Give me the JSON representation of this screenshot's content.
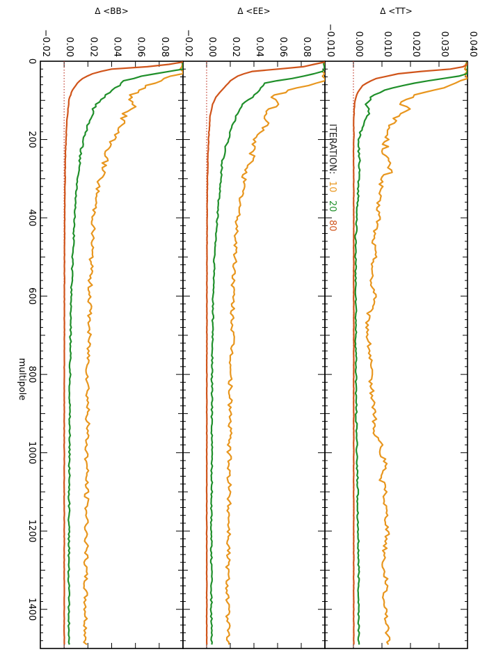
{
  "chart_data": {
    "type": "line",
    "orientation": "rotated 90 degrees clockwise",
    "xlabel": "multipole",
    "x_range": [
      0,
      1500
    ],
    "x_ticks": [
      0,
      200,
      400,
      600,
      800,
      1000,
      1200,
      1400
    ],
    "legend": {
      "prefix": "ITERATION:",
      "entries": [
        {
          "label": "10",
          "color": "#e8961e"
        },
        {
          "label": "20",
          "color": "#1f8f2a"
        },
        {
          "label": "80",
          "color": "#d0541a"
        }
      ]
    },
    "colors": {
      "iter10": "#e8961e",
      "iter20": "#1f8f2a",
      "iter80": "#d0541a",
      "zero_line": "#c0392b"
    },
    "panels": [
      {
        "id": "tt",
        "ylabel": "Δ <TT>",
        "y_range": [
          -0.01,
          0.04
        ],
        "y_ticks": [
          -0.01,
          0.0,
          0.01,
          0.02,
          0.03,
          0.04
        ],
        "y_tick_labels": [
          "−0.010",
          "0.000",
          "0.010",
          "0.020",
          "0.030",
          "0.040"
        ],
        "series": [
          {
            "iteration": "10",
            "x": [
              2,
              25,
              45,
              65,
              80,
              95,
              110,
              125,
              140,
              160,
              180,
              200,
              230,
              260,
              280,
              300,
              330,
              360,
              400,
              450,
              500,
              560,
              600,
              650,
              700,
              750,
              800,
              850,
              900,
              950,
              980,
              1000,
              1030,
              1060,
              1090,
              1120,
              1150,
              1200,
              1250,
              1300,
              1330,
              1350,
              1380,
              1400,
              1420,
              1440,
              1460,
              1490
            ],
            "y": [
              0.04,
              0.04,
              0.04,
              0.033,
              0.024,
              0.019,
              0.017,
              0.02,
              0.016,
              0.013,
              0.012,
              0.0115,
              0.011,
              0.012,
              0.013,
              0.01,
              0.0095,
              0.0085,
              0.009,
              0.007,
              0.0075,
              0.006,
              0.008,
              0.005,
              0.005,
              0.0058,
              0.006,
              0.0065,
              0.0075,
              0.007,
              0.01,
              0.009,
              0.012,
              0.009,
              0.0115,
              0.011,
              0.0115,
              0.012,
              0.011,
              0.0105,
              0.012,
              0.011,
              0.0105,
              0.012,
              0.0115,
              0.0115,
              0.012,
              0.012
            ]
          },
          {
            "iteration": "20",
            "x": [
              2,
              20,
              35,
              50,
              70,
              90,
              110,
              130,
              150,
              180,
              200,
              250,
              300,
              350,
              400,
              450,
              500,
              550,
              600,
              700,
              800,
              900,
              1000,
              1100,
              1200,
              1300,
              1400,
              1490
            ],
            "y": [
              0.04,
              0.04,
              0.04,
              0.026,
              0.012,
              0.0065,
              0.0045,
              0.0055,
              0.004,
              0.0025,
              0.002,
              0.002,
              0.0018,
              0.0016,
              0.0012,
              0.0008,
              0.0008,
              0.0007,
              0.0009,
              0.0008,
              0.0009,
              0.001,
              0.0012,
              0.0015,
              0.0016,
              0.0018,
              0.0018,
              0.0019
            ]
          },
          {
            "iteration": "80",
            "x": [
              2,
              12,
              20,
              30,
              45,
              60,
              80,
              100,
              130,
              160,
              200,
              300,
              400,
              500,
              600,
              700,
              800,
              900,
              1000,
              1200,
              1400,
              1490
            ],
            "y": [
              0.04,
              0.04,
              0.034,
              0.017,
              0.0075,
              0.0035,
              0.0015,
              0.0006,
              0.0002,
              0.0001,
              0.0001,
              0.0001,
              0.0001,
              0.0001,
              0.0001,
              0.0001,
              0.0001,
              0.0001,
              0.0001,
              0.0001,
              0.0001,
              0.0001
            ]
          }
        ]
      },
      {
        "id": "ee",
        "ylabel": "Δ <EE>",
        "y_range": [
          -0.02,
          0.1
        ],
        "y_ticks": [
          -0.02,
          0.0,
          0.02,
          0.04,
          0.06,
          0.08
        ],
        "y_tick_labels": [
          "−0.02",
          "0.00",
          "0.02",
          "0.04",
          "0.06",
          "0.08"
        ],
        "series": [
          {
            "iteration": "10",
            "x": [
              2,
              30,
              50,
              70,
              90,
              110,
              130,
              150,
              180,
              200,
              250,
              300,
              350,
              400,
              450,
              500,
              550,
              600,
              700,
              800,
              900,
              1000,
              1100,
              1200,
              1300,
              1400,
              1490
            ],
            "y": [
              0.1,
              0.1,
              0.1,
              0.075,
              0.055,
              0.06,
              0.05,
              0.052,
              0.045,
              0.04,
              0.038,
              0.032,
              0.029,
              0.026,
              0.025,
              0.024,
              0.023,
              0.022,
              0.022,
              0.02,
              0.02,
              0.019,
              0.019,
              0.019,
              0.018,
              0.018,
              0.018
            ]
          },
          {
            "iteration": "20",
            "x": [
              2,
              25,
              40,
              55,
              70,
              90,
              110,
              130,
              160,
              200,
              250,
              300,
              400,
              500,
              600,
              700,
              800,
              1000,
              1200,
              1400,
              1490
            ],
            "y": [
              0.1,
              0.1,
              0.08,
              0.05,
              0.045,
              0.04,
              0.03,
              0.027,
              0.022,
              0.018,
              0.014,
              0.012,
              0.009,
              0.0065,
              0.0055,
              0.005,
              0.0045,
              0.0045,
              0.004,
              0.004,
              0.004
            ]
          },
          {
            "iteration": "80",
            "x": [
              2,
              15,
              25,
              35,
              50,
              70,
              90,
              110,
              140,
              180,
              250,
              350,
              500,
              700,
              1000,
              1200,
              1490
            ],
            "y": [
              0.1,
              0.08,
              0.04,
              0.028,
              0.02,
              0.014,
              0.008,
              0.005,
              0.003,
              0.002,
              0.001,
              0.0005,
              0.0003,
              0.0002,
              0.0001,
              0.0001,
              0.0001
            ]
          }
        ]
      },
      {
        "id": "bb",
        "ylabel": "Δ <BB>",
        "y_range": [
          -0.02,
          0.1
        ],
        "y_ticks": [
          -0.02,
          0.0,
          0.02,
          0.04,
          0.06,
          0.08
        ],
        "y_tick_labels": [
          "−0.02",
          "0.00",
          "0.02",
          "0.04",
          "0.06",
          "0.08"
        ],
        "series": [
          {
            "iteration": "10",
            "x": [
              2,
              30,
              50,
              70,
              90,
              110,
              130,
              150,
              180,
              200,
              250,
              300,
              350,
              400,
              450,
              500,
              550,
              600,
              700,
              800,
              900,
              1000,
              1100,
              1200,
              1300,
              1400,
              1490
            ],
            "y": [
              0.1,
              0.1,
              0.08,
              0.065,
              0.055,
              0.06,
              0.052,
              0.05,
              0.045,
              0.04,
              0.035,
              0.03,
              0.027,
              0.025,
              0.024,
              0.023,
              0.022,
              0.022,
              0.021,
              0.02,
              0.02,
              0.019,
              0.019,
              0.019,
              0.018,
              0.018,
              0.018
            ]
          },
          {
            "iteration": "20",
            "x": [
              2,
              20,
              35,
              50,
              65,
              80,
              100,
              120,
              150,
              180,
              220,
              280,
              350,
              450,
              550,
              650,
              800,
              1000,
              1200,
              1400,
              1490
            ],
            "y": [
              0.1,
              0.1,
              0.07,
              0.05,
              0.045,
              0.038,
              0.03,
              0.025,
              0.022,
              0.018,
              0.015,
              0.012,
              0.01,
              0.008,
              0.0065,
              0.0055,
              0.005,
              0.0045,
              0.004,
              0.004,
              0.004
            ]
          },
          {
            "iteration": "80",
            "x": [
              2,
              12,
              20,
              30,
              45,
              60,
              80,
              100,
              130,
              170,
              250,
              350,
              500,
              700,
              1000,
              1200,
              1490
            ],
            "y": [
              0.1,
              0.08,
              0.04,
              0.025,
              0.015,
              0.01,
              0.006,
              0.004,
              0.003,
              0.002,
              0.001,
              0.0006,
              0.0003,
              0.0002,
              0.0001,
              0.0001,
              0.0001
            ]
          }
        ]
      }
    ]
  }
}
